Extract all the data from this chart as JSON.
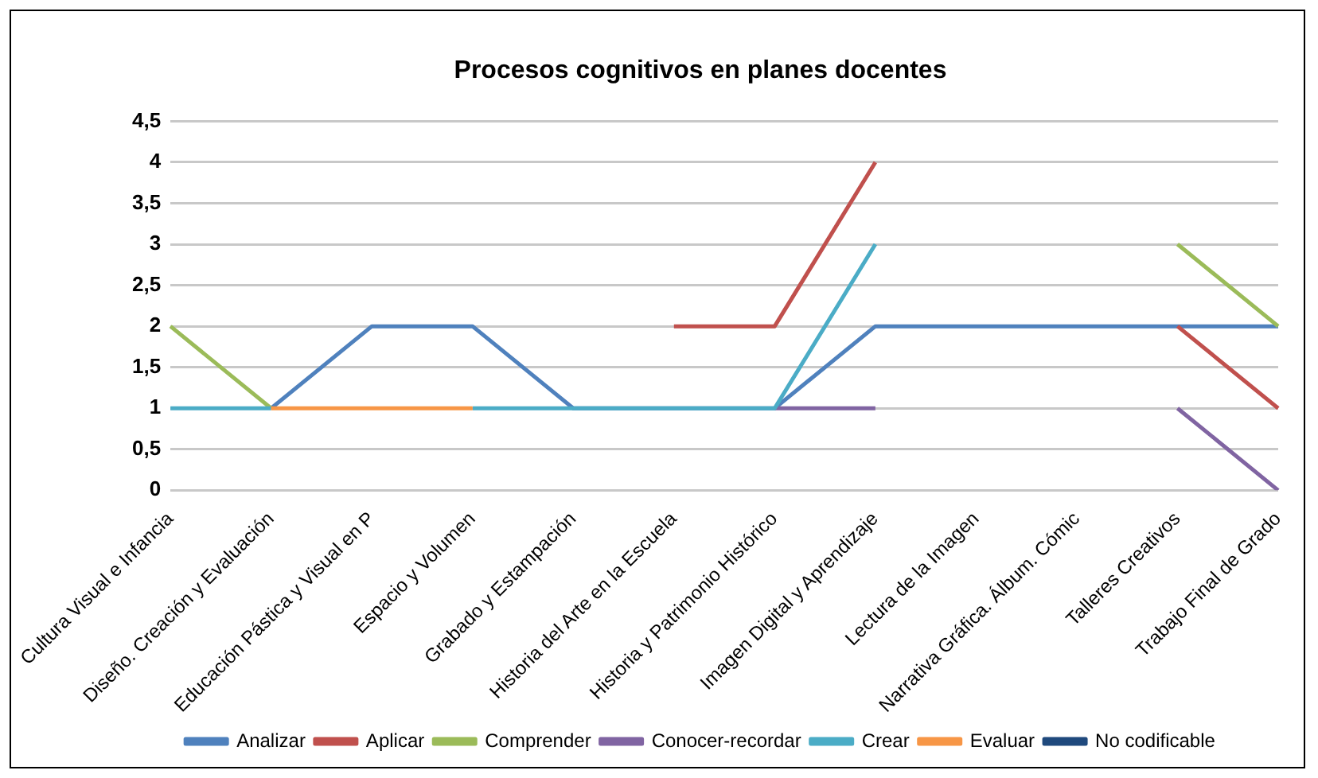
{
  "chart_data": {
    "type": "line",
    "title": "Procesos cognitivos en planes docentes",
    "categories": [
      "Cultura Visual e Infancia",
      "Diseño. Creación y Evaluación",
      "Educación Pástica y Visual en P",
      "Espacio y Volumen",
      "Grabado y Estampación",
      "Historia del Arte en la Escuela",
      "Historia y Patrimonio Histórico",
      "Imagen Digital y Aprendizaje",
      "Lectura de la Imagen",
      "Narrativa Gráfica. Álbum. Cómic",
      "Talleres Creativos",
      "Trabajo Final de Grado"
    ],
    "series": [
      {
        "name": "Analizar",
        "color": "#4f81bd",
        "values": [
          null,
          1,
          2,
          2,
          1,
          1,
          1,
          2,
          2,
          2,
          2,
          2
        ]
      },
      {
        "name": "Aplicar",
        "color": "#c0504d",
        "values": [
          null,
          null,
          null,
          null,
          null,
          2,
          2,
          4,
          null,
          null,
          2,
          1
        ]
      },
      {
        "name": "Comprender",
        "color": "#9bbb59",
        "values": [
          2,
          1,
          null,
          null,
          null,
          null,
          null,
          null,
          null,
          null,
          3,
          2
        ]
      },
      {
        "name": "Conocer-recordar",
        "color": "#8064a2",
        "values": [
          null,
          null,
          null,
          null,
          null,
          null,
          1,
          1,
          null,
          null,
          1,
          0
        ]
      },
      {
        "name": "Crear",
        "color": "#4bacc6",
        "values": [
          1,
          1,
          null,
          1,
          1,
          1,
          1,
          3,
          null,
          null,
          null,
          null
        ]
      },
      {
        "name": "Evaluar",
        "color": "#f79646",
        "values": [
          null,
          1,
          1,
          1,
          null,
          null,
          null,
          null,
          null,
          null,
          null,
          null
        ]
      },
      {
        "name": "No codificable",
        "color": "#1f497d",
        "values": [
          null,
          null,
          null,
          null,
          null,
          null,
          null,
          null,
          null,
          null,
          null,
          null
        ]
      }
    ],
    "ylim": [
      0,
      4.5
    ],
    "yticks": [
      0,
      {
        "value": 0.5,
        "label": "0,5"
      },
      1,
      {
        "value": 1.5,
        "label": "1,5"
      },
      2,
      {
        "value": 2.5,
        "label": "2,5"
      },
      3,
      {
        "value": 3.5,
        "label": "3,5"
      },
      4,
      {
        "value": 4.5,
        "label": "4,5"
      }
    ],
    "grid": "y",
    "legend": "bottom",
    "marker": "none",
    "line_style": "solid"
  }
}
